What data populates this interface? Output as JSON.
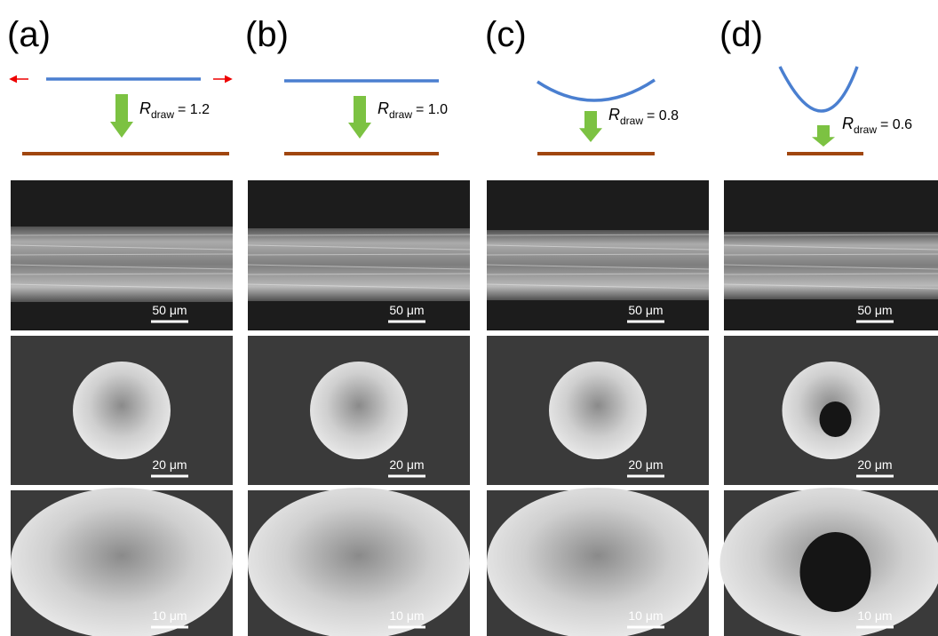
{
  "panels": [
    {
      "label": "(a)",
      "r_symbol": "R",
      "r_subscript": "draw",
      "r_value": "= 1.2",
      "scale_bars": [
        "50 μm",
        "20 μm",
        "10 μm"
      ]
    },
    {
      "label": "(b)",
      "r_symbol": "R",
      "r_subscript": "draw",
      "r_value": "= 1.0",
      "scale_bars": [
        "50 μm",
        "20 μm",
        "10 μm"
      ]
    },
    {
      "label": "(c)",
      "r_symbol": "R",
      "r_subscript": "draw",
      "r_value": "= 0.8",
      "scale_bars": [
        "50 μm",
        "20 μm",
        "10 μm"
      ]
    },
    {
      "label": "(d)",
      "r_symbol": "R",
      "r_subscript": "draw",
      "r_value": "= 0.6",
      "scale_bars": [
        "50 μm",
        "20 μm",
        "10 μm"
      ]
    }
  ]
}
